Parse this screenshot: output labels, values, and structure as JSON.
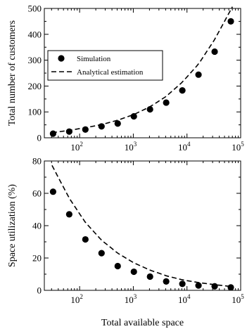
{
  "chart_data": [
    {
      "type": "scatter",
      "xlabel": "",
      "ylabel": "Total number of customers",
      "x_scale": "log",
      "xlim": [
        22,
        100000
      ],
      "ylim": [
        0,
        500
      ],
      "y_ticks": [
        0,
        100,
        200,
        300,
        400,
        500
      ],
      "x_ticks": [
        100,
        1000,
        10000,
        100000
      ],
      "x_tick_labels": [
        {
          "base": "10",
          "exp": "2"
        },
        {
          "base": "10",
          "exp": "3"
        },
        {
          "base": "10",
          "exp": "4"
        },
        {
          "base": "10",
          "exp": "5"
        }
      ],
      "legend_position": "middle-left",
      "series": [
        {
          "name": "Simulation",
          "style": "points",
          "x": [
            32,
            64,
            128,
            256,
            512,
            1024,
            2048,
            4096,
            8192,
            16384,
            32768,
            65536
          ],
          "y": [
            16,
            24,
            32,
            44,
            55,
            83,
            110,
            136,
            183,
            244,
            333,
            450
          ]
        },
        {
          "name": "Analytical estimation",
          "style": "dashed",
          "x": [
            32,
            64,
            128,
            256,
            512,
            1024,
            2048,
            4096,
            8192,
            16384,
            32768,
            65536
          ],
          "y": [
            20,
            29,
            39,
            51,
            68,
            90,
            120,
            160,
            215,
            285,
            380,
            495
          ]
        }
      ]
    },
    {
      "type": "scatter",
      "xlabel": "Total available space",
      "ylabel": "Space utilization (%)",
      "x_scale": "log",
      "xlim": [
        22,
        100000
      ],
      "ylim": [
        0,
        80
      ],
      "y_ticks": [
        0,
        20,
        40,
        60,
        80
      ],
      "x_ticks": [
        100,
        1000,
        10000,
        100000
      ],
      "x_tick_labels": [
        {
          "base": "10",
          "exp": "2"
        },
        {
          "base": "10",
          "exp": "3"
        },
        {
          "base": "10",
          "exp": "4"
        },
        {
          "base": "10",
          "exp": "5"
        }
      ],
      "series": [
        {
          "name": "Simulation",
          "style": "points",
          "x": [
            32,
            64,
            128,
            256,
            512,
            1024,
            2048,
            4096,
            8192,
            16384,
            32768,
            65536
          ],
          "y": [
            61,
            47,
            31.5,
            23,
            15,
            11.5,
            8.5,
            5.5,
            4,
            3,
            2.5,
            1.8
          ]
        },
        {
          "name": "Analytical estimation",
          "style": "dashed",
          "x": [
            32,
            64,
            128,
            256,
            512,
            1024,
            2048,
            4096,
            8192,
            16384,
            32768,
            65536
          ],
          "y": [
            76,
            57,
            42,
            31,
            23,
            17,
            12.5,
            9,
            6.5,
            4.8,
            3.5,
            2.4
          ]
        }
      ]
    }
  ]
}
